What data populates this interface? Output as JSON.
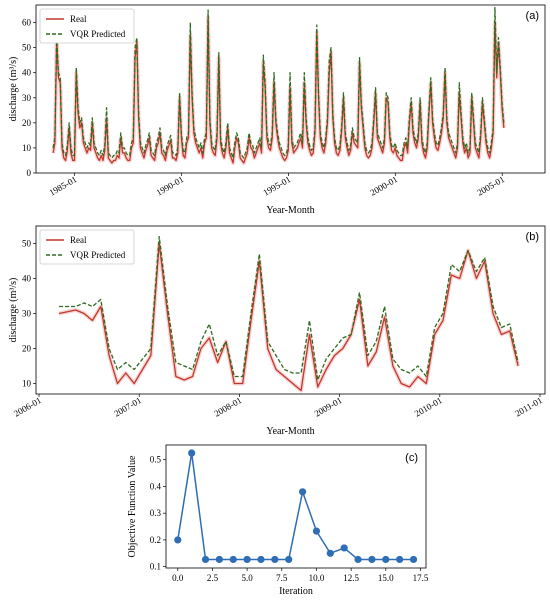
{
  "colors": {
    "real": "#c0392b",
    "real_band": "#f6c1c1",
    "predicted": "#2e6b1e",
    "objective": "#2f6db5"
  },
  "chart_data": [
    {
      "id": "a",
      "type": "line",
      "panel_label": "(a)",
      "xlabel": "Year-Month",
      "ylabel": "discharge (m³/s)",
      "ylim": [
        0,
        67
      ],
      "x_range_years": [
        1983.2,
        2007.0
      ],
      "yticks": [
        0,
        10,
        20,
        30,
        40,
        50,
        60
      ],
      "xticks": [
        {
          "value": 1985.0,
          "label": "1985-01"
        },
        {
          "value": 1990.0,
          "label": "1990-01"
        },
        {
          "value": 1995.0,
          "label": "1995-01"
        },
        {
          "value": 2000.0,
          "label": "2000-01"
        },
        {
          "value": 2005.0,
          "label": "2005-01"
        }
      ],
      "legend_position": "upper-left",
      "x_start_year": 1984.0,
      "x_step_years": 0.0833,
      "series": [
        {
          "name": "Real",
          "style": "solid",
          "values": [
            8,
            12,
            53,
            38,
            36,
            10,
            6,
            5,
            9,
            18,
            8,
            5,
            5,
            40,
            24,
            18,
            20,
            12,
            10,
            8,
            10,
            9,
            20,
            10,
            8,
            6,
            5,
            7,
            5,
            9,
            22,
            6,
            5,
            4,
            5,
            5,
            7,
            6,
            14,
            8,
            8,
            6,
            5,
            5,
            10,
            12,
            46,
            52,
            22,
            10,
            8,
            6,
            9,
            11,
            14,
            7,
            6,
            5,
            10,
            12,
            16,
            8,
            7,
            5,
            9,
            11,
            13,
            6,
            6,
            5,
            8,
            30,
            14,
            7,
            6,
            12,
            14,
            55,
            30,
            16,
            12,
            10,
            8,
            10,
            6,
            12,
            14,
            62,
            20,
            10,
            8,
            7,
            14,
            46,
            12,
            8,
            6,
            10,
            18,
            8,
            6,
            4,
            10,
            14,
            12,
            6,
            5,
            4,
            6,
            8,
            14,
            10,
            9,
            6,
            8,
            10,
            12,
            8,
            44,
            34,
            14,
            10,
            9,
            14,
            36,
            20,
            14,
            10,
            8,
            6,
            5,
            6,
            9,
            34,
            12,
            8,
            9,
            10,
            12,
            14,
            10,
            36,
            20,
            12,
            9,
            7,
            8,
            16,
            56,
            30,
            14,
            10,
            8,
            12,
            20,
            40,
            48,
            22,
            12,
            8,
            7,
            9,
            17,
            30,
            14,
            10,
            7,
            9,
            16,
            12,
            11,
            10,
            44,
            26,
            18,
            10,
            7,
            6,
            7,
            10,
            20,
            32,
            14,
            12,
            10,
            8,
            12,
            30,
            28,
            14,
            9,
            8,
            10,
            7,
            6,
            5,
            5,
            10,
            12,
            8,
            20,
            28,
            16,
            12,
            10,
            14,
            28,
            12,
            8,
            6,
            10,
            24,
            36,
            20,
            14,
            10,
            9,
            12,
            16,
            22,
            40,
            20,
            14,
            12,
            10,
            8,
            6,
            10,
            32,
            22,
            12,
            8,
            10,
            6,
            8,
            30,
            20,
            10,
            8,
            6,
            14,
            28,
            20,
            12,
            8,
            6,
            10,
            16,
            60,
            38,
            52,
            40,
            26,
            18
          ]
        },
        {
          "name": "VQR Predicted",
          "style": "dashed",
          "values": [
            10,
            14,
            55,
            40,
            38,
            12,
            8,
            7,
            11,
            20,
            10,
            7,
            7,
            42,
            26,
            20,
            22,
            14,
            12,
            10,
            12,
            11,
            22,
            12,
            10,
            8,
            7,
            9,
            7,
            11,
            26,
            8,
            7,
            6,
            7,
            7,
            9,
            8,
            16,
            10,
            10,
            8,
            7,
            7,
            12,
            14,
            50,
            54,
            24,
            12,
            10,
            8,
            11,
            13,
            16,
            9,
            8,
            7,
            12,
            14,
            18,
            10,
            9,
            7,
            11,
            13,
            15,
            8,
            8,
            7,
            10,
            32,
            16,
            9,
            8,
            14,
            16,
            60,
            32,
            18,
            14,
            12,
            10,
            12,
            8,
            14,
            16,
            65,
            22,
            12,
            10,
            9,
            16,
            48,
            14,
            10,
            8,
            12,
            20,
            10,
            8,
            6,
            12,
            16,
            14,
            8,
            7,
            6,
            8,
            10,
            16,
            12,
            11,
            8,
            10,
            12,
            14,
            10,
            47,
            36,
            16,
            12,
            11,
            16,
            40,
            22,
            16,
            12,
            10,
            8,
            7,
            8,
            11,
            40,
            14,
            10,
            11,
            12,
            14,
            16,
            12,
            40,
            22,
            14,
            11,
            9,
            10,
            18,
            59,
            32,
            16,
            12,
            10,
            14,
            22,
            45,
            50,
            24,
            14,
            10,
            9,
            11,
            19,
            32,
            16,
            12,
            9,
            11,
            18,
            14,
            13,
            12,
            46,
            28,
            20,
            12,
            9,
            8,
            9,
            12,
            22,
            34,
            16,
            14,
            12,
            10,
            14,
            32,
            30,
            16,
            11,
            10,
            12,
            9,
            8,
            7,
            7,
            12,
            14,
            10,
            22,
            30,
            18,
            14,
            12,
            16,
            30,
            14,
            10,
            8,
            12,
            26,
            38,
            22,
            16,
            12,
            11,
            14,
            18,
            24,
            42,
            22,
            16,
            14,
            12,
            10,
            8,
            12,
            36,
            24,
            14,
            10,
            12,
            8,
            10,
            32,
            22,
            12,
            10,
            8,
            16,
            30,
            22,
            14,
            10,
            8,
            12,
            18,
            66,
            40,
            54,
            42,
            28,
            20
          ]
        }
      ]
    },
    {
      "id": "b",
      "type": "line",
      "panel_label": "(b)",
      "xlabel": "Year-Month",
      "ylabel": "discharge (m³/s)",
      "ylim": [
        7,
        55
      ],
      "x_range_years": [
        2005.97,
        2011.05
      ],
      "yticks": [
        10,
        20,
        30,
        40,
        50
      ],
      "xticks": [
        {
          "value": 2006.0,
          "label": "2006-01"
        },
        {
          "value": 2007.0,
          "label": "2007-01"
        },
        {
          "value": 2008.0,
          "label": "2008-01"
        },
        {
          "value": 2009.0,
          "label": "2009-01"
        },
        {
          "value": 2010.0,
          "label": "2010-01"
        },
        {
          "value": 2011.0,
          "label": "2011-01"
        }
      ],
      "legend_position": "upper-left",
      "x_start_year": 2006.2,
      "x_step_years": 0.0833,
      "series": [
        {
          "name": "Real",
          "style": "solid",
          "values": [
            30,
            30.5,
            31,
            30,
            28,
            32,
            18,
            10,
            13,
            10,
            14,
            18,
            50,
            30,
            12,
            11,
            12,
            20,
            23,
            16,
            22,
            10,
            10,
            28,
            45,
            20,
            14,
            12,
            10,
            8,
            24,
            9,
            14,
            18,
            20,
            24,
            34,
            15,
            19,
            29,
            15,
            10,
            9,
            12,
            10,
            24,
            28,
            41,
            40,
            48,
            40,
            45,
            30,
            24,
            25,
            15
          ]
        },
        {
          "name": "VQR Predicted",
          "style": "dashed",
          "values": [
            32,
            32,
            32,
            33,
            32,
            34,
            20,
            14,
            16,
            14,
            17,
            20,
            52,
            32,
            16,
            15,
            14,
            22,
            27,
            18,
            22,
            12,
            12,
            30,
            47,
            22,
            18,
            14,
            13,
            13,
            28,
            11,
            17,
            20,
            23,
            24,
            36,
            18,
            22,
            32,
            17,
            14,
            13,
            15,
            12,
            26,
            30,
            44,
            42,
            48,
            42,
            46,
            32,
            26,
            27,
            16
          ]
        }
      ]
    },
    {
      "id": "c",
      "type": "line",
      "panel_label": "(c)",
      "xlabel": "Iteration",
      "ylabel": "Objective Function Value",
      "xlim": [
        -0.85,
        17.9
      ],
      "ylim": [
        0.095,
        0.555
      ],
      "xticks": [
        0.0,
        2.5,
        5.0,
        7.5,
        10.0,
        12.5,
        15.0,
        17.5
      ],
      "yticks": [
        0.1,
        0.2,
        0.3,
        0.4,
        0.5
      ],
      "x": [
        0,
        1,
        2,
        3,
        4,
        5,
        6,
        7,
        8,
        9,
        10,
        11,
        12,
        13,
        14,
        15,
        16,
        17
      ],
      "values": [
        0.2,
        0.525,
        0.127,
        0.127,
        0.127,
        0.127,
        0.127,
        0.127,
        0.127,
        0.38,
        0.233,
        0.15,
        0.17,
        0.127,
        0.127,
        0.127,
        0.127,
        0.127
      ]
    }
  ]
}
